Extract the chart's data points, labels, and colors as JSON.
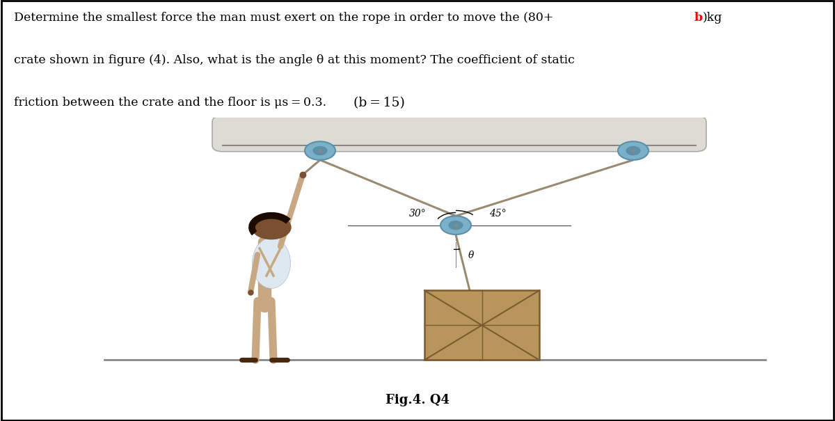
{
  "bg_color": "#ffffff",
  "fig_label": "Fig.4. Q4",
  "angle_30": "30°",
  "angle_45": "45°",
  "angle_theta": "θ",
  "ceiling_color": "#dcdcd4",
  "ceiling_edge": "#aaaaaa",
  "rope_color": "#9a8a72",
  "pulley_outer": "#7ab0c8",
  "pulley_inner": "#5a90a8",
  "pulley_center": "#888888",
  "crate_face": "#b8955a",
  "crate_edge": "#7a5a30",
  "floor_color": "#888888",
  "man_skin": "#7a5030",
  "man_overall": "#c8a882",
  "man_shirt": "#dde8f0",
  "man_hair": "#1a0a00",
  "man_shoe": "#4a2810"
}
